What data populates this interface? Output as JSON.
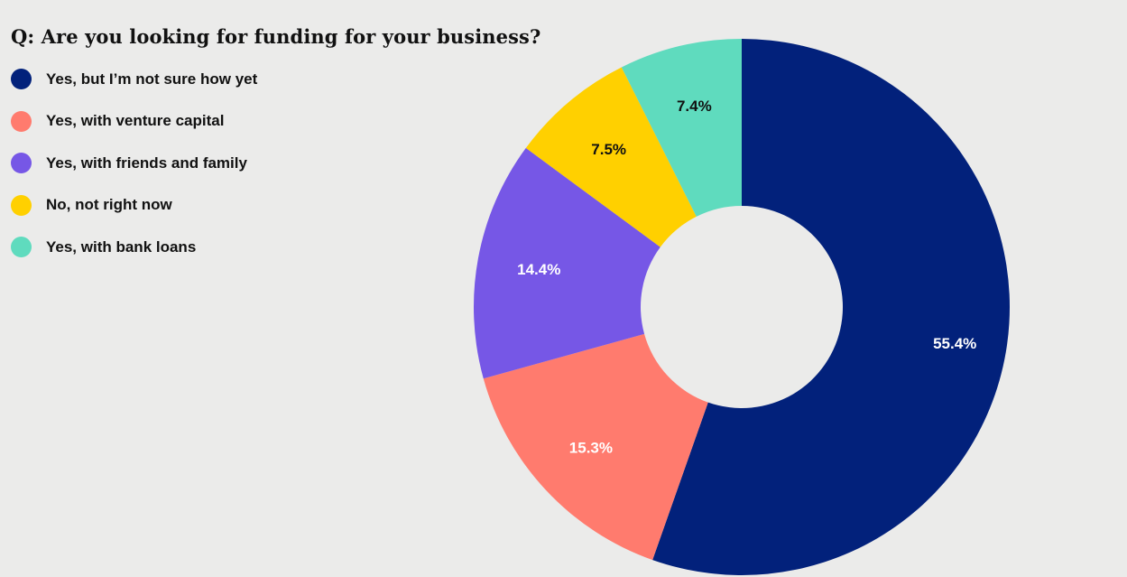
{
  "chart_data": {
    "type": "pie",
    "variant": "donut",
    "title": "Q: Are you looking for funding for your business?",
    "legend_position": "top-left",
    "slices": [
      {
        "label": "Yes, but I’m not sure how yet",
        "value": 55.4,
        "display": "55.4%",
        "color": "#02217b",
        "label_color": "#ffffff"
      },
      {
        "label": "Yes, with venture capital",
        "value": 15.3,
        "display": "15.3%",
        "color": "#ff7b6e",
        "label_color": "#ffffff"
      },
      {
        "label": "Yes, with friends and family",
        "value": 14.4,
        "display": "14.4%",
        "color": "#7657e6",
        "label_color": "#ffffff"
      },
      {
        "label": "No, not right now",
        "value": 7.5,
        "display": "7.5%",
        "color": "#ffd000",
        "label_color": "#111111"
      },
      {
        "label": "Yes, with bank loans",
        "value": 7.4,
        "display": "7.4%",
        "color": "#5fdbbe",
        "label_color": "#111111"
      }
    ]
  }
}
